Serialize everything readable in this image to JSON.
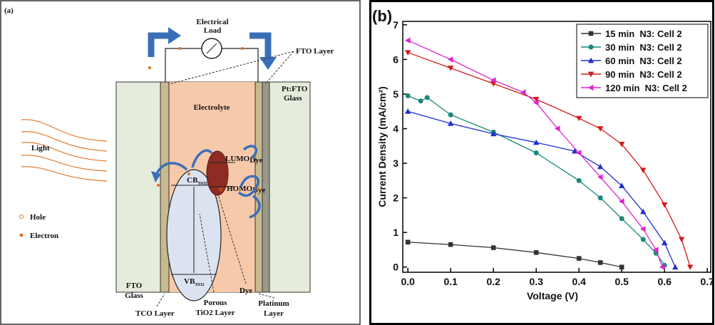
{
  "diagram": {
    "panel_label": "(a)",
    "load": [
      "Electrical",
      "Load"
    ],
    "fto_layer": "FTO Layer",
    "electrolyte": "Electrolyte",
    "pt_glass": [
      "Pt:FTO",
      "Glass"
    ],
    "light": "Light",
    "hole": "Hole",
    "electron": "Electron",
    "fto_glass": [
      "FTO",
      "Glass"
    ],
    "cb": {
      "label": "CB",
      "sub": "TiO2"
    },
    "vb": {
      "label": "VB",
      "sub": "TiO2"
    },
    "lumo": {
      "label": "LUMO",
      "sub": "Dye"
    },
    "homo": {
      "label": "HOMO",
      "sub": "Dye"
    },
    "tco_layer": "TCO Layer",
    "porous": [
      "Porous",
      "TiO2 Layer"
    ],
    "dye": "Dye",
    "platinum": [
      "Platinum",
      "Layer"
    ]
  },
  "chart_data": {
    "type": "line",
    "panel_label": "(b)",
    "x_label": "Voltage (V)",
    "y_label": "Current Density (mA/cm²)",
    "xlim": [
      -0.012,
      0.708
    ],
    "ylim": [
      -0.15,
      7.1
    ],
    "xticks": [
      {
        "value": 0,
        "label": "0.0"
      },
      0.1,
      0.2,
      0.3,
      0.4,
      0.5,
      0.6,
      0.7
    ],
    "yticks": [
      0,
      1,
      2,
      3,
      4,
      5,
      6,
      7
    ],
    "legend": "upper right",
    "series": [
      {
        "name": "15 min  N3: Cell 2",
        "color": "#333333",
        "marker": "square",
        "x": [
          0,
          0.1,
          0.2,
          0.3,
          0.4,
          0.45,
          0.5
        ],
        "values": [
          0.72,
          0.65,
          0.56,
          0.42,
          0.25,
          0.13,
          0.0
        ]
      },
      {
        "name": "30 min  N3: Cell 2",
        "color": "#1a8a7a",
        "marker": "circle",
        "x": [
          0,
          0.03,
          0.045,
          0.1,
          0.2,
          0.3,
          0.4,
          0.45,
          0.5,
          0.55,
          0.58,
          0.6
        ],
        "values": [
          4.95,
          4.8,
          4.9,
          4.4,
          3.9,
          3.3,
          2.5,
          2.0,
          1.4,
          0.8,
          0.4,
          0.05
        ]
      },
      {
        "name": "60 min  N3: Cell 2",
        "color": "#1f2fd0",
        "marker": "triangle-up",
        "x": [
          0,
          0.1,
          0.2,
          0.3,
          0.39,
          0.45,
          0.5,
          0.55,
          0.6,
          0.625
        ],
        "values": [
          4.5,
          4.15,
          3.85,
          3.6,
          3.35,
          2.9,
          2.35,
          1.6,
          0.7,
          0.0
        ]
      },
      {
        "name": "90 min  N3: Cell 2",
        "color": "#d41a1a",
        "marker": "triangle-down",
        "x": [
          0,
          0.1,
          0.2,
          0.3,
          0.4,
          0.45,
          0.5,
          0.55,
          0.6,
          0.64,
          0.66
        ],
        "values": [
          6.2,
          5.75,
          5.3,
          4.85,
          4.3,
          4.0,
          3.55,
          2.8,
          1.8,
          0.8,
          0.0
        ]
      },
      {
        "name": "120 min  N3: Cell 2",
        "color": "#e020d0",
        "marker": "triangle-left",
        "x": [
          0,
          0.1,
          0.2,
          0.27,
          0.3,
          0.35,
          0.4,
          0.45,
          0.5,
          0.55,
          0.58,
          0.595
        ],
        "values": [
          6.55,
          6.0,
          5.4,
          5.05,
          4.75,
          4.0,
          3.3,
          2.6,
          1.9,
          1.1,
          0.5,
          0.0
        ]
      }
    ]
  }
}
